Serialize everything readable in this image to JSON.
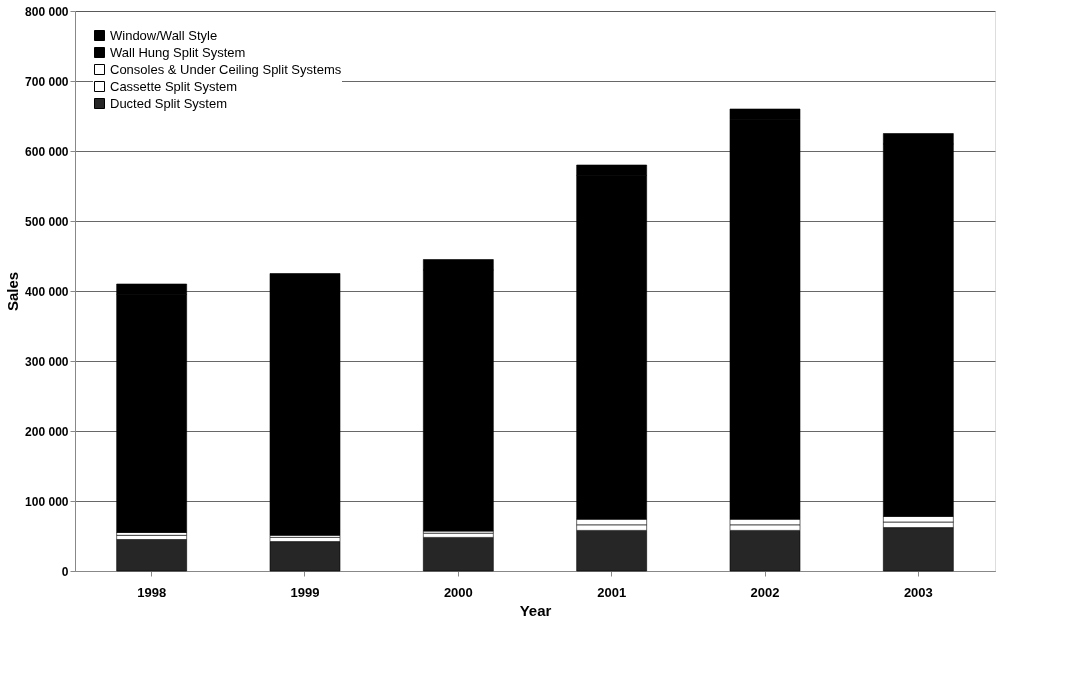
{
  "chart_data": {
    "type": "bar",
    "stacked": true,
    "xlabel": "Year",
    "ylabel": "Sales",
    "categories": [
      "1998",
      "1999",
      "2000",
      "2001",
      "2002",
      "2003"
    ],
    "series": [
      {
        "name": "Ducted Split System",
        "color": "#262626",
        "values": [
          45000,
          42000,
          48000,
          58000,
          58000,
          62000
        ]
      },
      {
        "name": "Cassette Split System",
        "color": "#ffffff",
        "values": [
          6000,
          6000,
          6000,
          8000,
          8000,
          8000
        ]
      },
      {
        "name": "Consoles & Under Ceiling Split Systems",
        "color": "#ffffff",
        "values": [
          4000,
          3000,
          3000,
          8000,
          8000,
          8000
        ]
      },
      {
        "name": "Wall Hung Split System",
        "color": "#000000",
        "values": [
          340000,
          359000,
          373000,
          491000,
          571000,
          532000
        ]
      },
      {
        "name": "Window/Wall Style",
        "color": "#000000",
        "values": [
          15000,
          15000,
          15000,
          15000,
          15000,
          15000
        ]
      }
    ],
    "ylim": [
      0,
      800000
    ],
    "yticks": [
      {
        "value": 0,
        "label": "0"
      },
      {
        "value": 100000,
        "label": "100 000"
      },
      {
        "value": 200000,
        "label": "200 000"
      },
      {
        "value": 300000,
        "label": "300 000"
      },
      {
        "value": 400000,
        "label": "400 000"
      },
      {
        "value": 500000,
        "label": "500 000"
      },
      {
        "value": 600000,
        "label": "600 000"
      },
      {
        "value": 700000,
        "label": "700 000"
      },
      {
        "value": 800000,
        "label": "800 000"
      }
    ],
    "grid": "y",
    "legend": "top left"
  }
}
